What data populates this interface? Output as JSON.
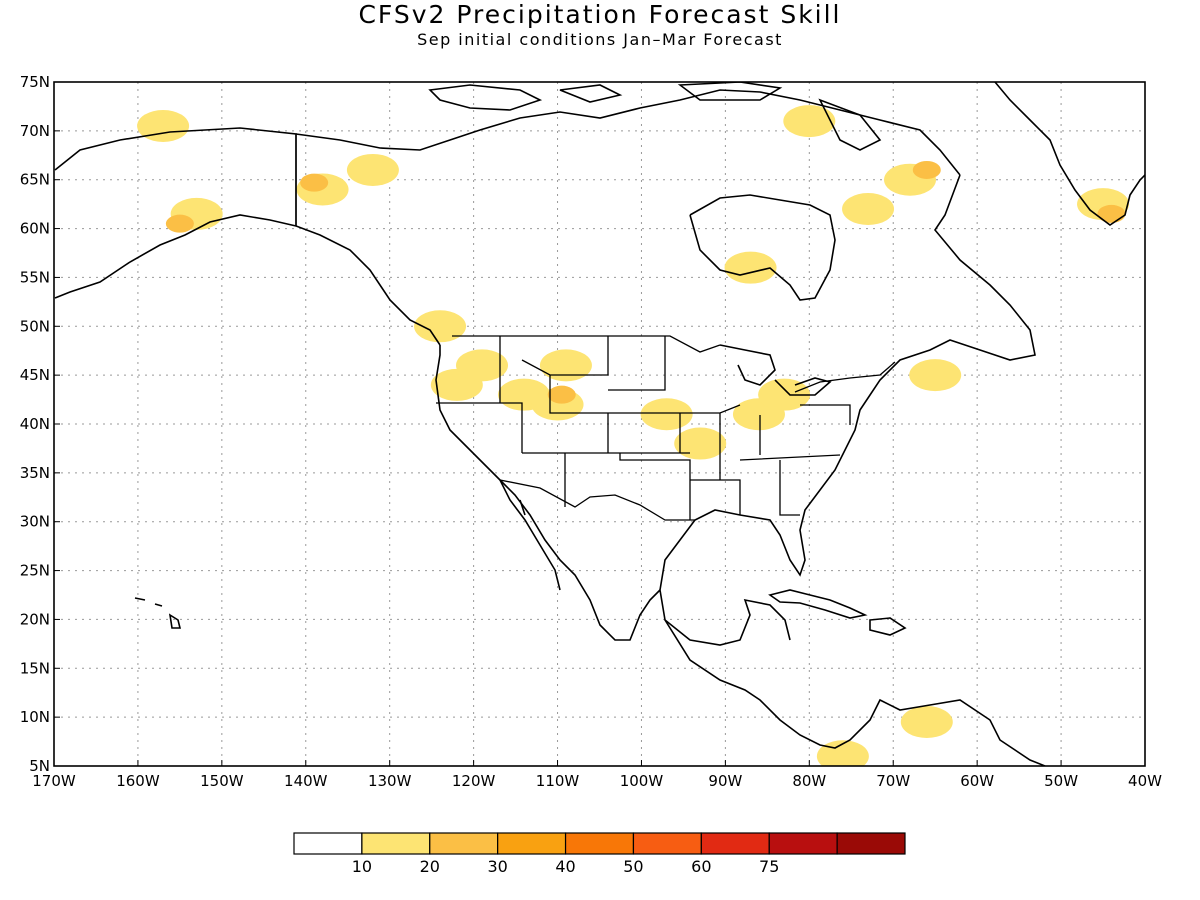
{
  "header": {
    "title": "CFSv2 Precipitation Forecast Skill",
    "subtitle": "Sep initial conditions  Jan–Mar Forecast"
  },
  "map": {
    "lon_range": [
      -170,
      -40
    ],
    "lat_range": [
      5,
      75
    ],
    "lon_ticks": [
      "170W",
      "160W",
      "150W",
      "140W",
      "130W",
      "120W",
      "110W",
      "100W",
      "90W",
      "80W",
      "70W",
      "60W",
      "50W",
      "40W"
    ],
    "lat_ticks": [
      "75N",
      "70N",
      "65N",
      "60N",
      "55N",
      "50N",
      "45N",
      "40N",
      "35N",
      "30N",
      "25N",
      "20N",
      "15N",
      "10N",
      "5N"
    ],
    "grid": "dotted",
    "skill_regions": [
      {
        "name": "northern-alaska-coast",
        "lon": -157,
        "lat": 70.5,
        "level": 1
      },
      {
        "name": "central-alaska",
        "lon": -153,
        "lat": 61.5,
        "level": 1
      },
      {
        "name": "south-alaska",
        "lon": -155,
        "lat": 60.5,
        "level": 2
      },
      {
        "name": "yukon",
        "lon": -138,
        "lat": 64,
        "level": 1
      },
      {
        "name": "yukon-core",
        "lon": -139,
        "lat": 64.7,
        "level": 2
      },
      {
        "name": "nw-territories",
        "lon": -132,
        "lat": 66,
        "level": 1
      },
      {
        "name": "vancouver-island",
        "lon": -124,
        "lat": 50,
        "level": 1
      },
      {
        "name": "oregon",
        "lon": -122,
        "lat": 44,
        "level": 1
      },
      {
        "name": "idaho",
        "lon": -119,
        "lat": 46,
        "level": 1
      },
      {
        "name": "nevada-north",
        "lon": -114,
        "lat": 43,
        "level": 1
      },
      {
        "name": "montana",
        "lon": -109,
        "lat": 46,
        "level": 1
      },
      {
        "name": "wyoming",
        "lon": -110,
        "lat": 42,
        "level": 1
      },
      {
        "name": "wyoming-core",
        "lon": -109.5,
        "lat": 43,
        "level": 2
      },
      {
        "name": "nebraska-kansas",
        "lon": -97,
        "lat": 41,
        "level": 1
      },
      {
        "name": "missouri-arkansas",
        "lon": -93,
        "lat": 38,
        "level": 1
      },
      {
        "name": "ohio-valley",
        "lon": -86,
        "lat": 41,
        "level": 1
      },
      {
        "name": "michigan",
        "lon": -83,
        "lat": 43,
        "level": 1
      },
      {
        "name": "hudson-bay-south",
        "lon": -87,
        "lat": 56,
        "level": 1
      },
      {
        "name": "labrador",
        "lon": -68,
        "lat": 65,
        "level": 1
      },
      {
        "name": "baffin-core",
        "lon": -66,
        "lat": 66,
        "level": 2
      },
      {
        "name": "quebec-east",
        "lon": -73,
        "lat": 62,
        "level": 1
      },
      {
        "name": "baffin-north",
        "lon": -80,
        "lat": 71,
        "level": 1
      },
      {
        "name": "nova-scotia",
        "lon": -65,
        "lat": 45,
        "level": 1
      },
      {
        "name": "greenland-south",
        "lon": -45,
        "lat": 62.5,
        "level": 1
      },
      {
        "name": "greenland-core",
        "lon": -44,
        "lat": 61.5,
        "level": 2
      },
      {
        "name": "venezuela",
        "lon": -66,
        "lat": 9.5,
        "level": 1
      },
      {
        "name": "colombia",
        "lon": -76,
        "lat": 6,
        "level": 1
      }
    ]
  },
  "legend": {
    "colors": [
      "#ffffff",
      "#fde473",
      "#fbbf45",
      "#f9a111",
      "#f87707",
      "#f75d12",
      "#e12a13",
      "#b80f0f",
      "#9a0a06"
    ],
    "labels": [
      "10",
      "20",
      "30",
      "40",
      "50",
      "60",
      "75"
    ]
  }
}
